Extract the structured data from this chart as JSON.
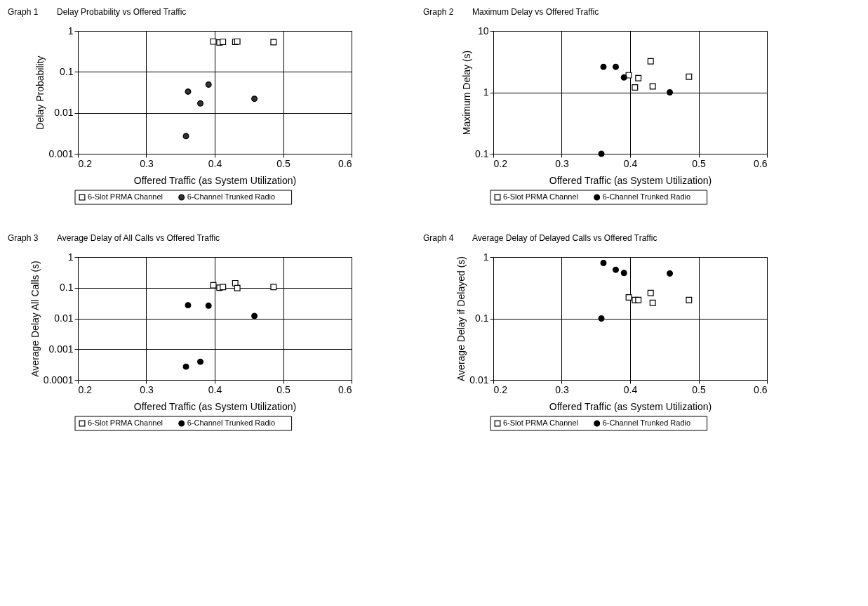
{
  "chart_data": [
    {
      "type": "scatter",
      "title": "Graph 1",
      "subtitle": "Delay Probability vs Offered Traffic",
      "xlabel": "Offered Traffic (as System Utilization)",
      "ylabel": "Delay Probability",
      "log": "y",
      "grid": true,
      "legend": "bottom",
      "xlim": [
        0.2,
        0.6
      ],
      "xticks": [
        0.2,
        0.3,
        0.4,
        0.5,
        0.6
      ],
      "ylim": [
        0.001,
        1
      ],
      "yticks": [
        0.001,
        0.01,
        0.1,
        1
      ],
      "series": [
        {
          "name": "6-Slot PRMA Channel",
          "color": "#ffffff",
          "marker": "square",
          "x": [
            0.398,
            0.407,
            0.412,
            0.43,
            0.433,
            0.486
          ],
          "values": [
            0.55,
            0.52,
            0.54,
            0.54,
            0.55,
            0.53
          ]
        },
        {
          "name": "6-Channel Trunked Radio",
          "color": "#333333",
          "marker": "circle",
          "x": [
            0.358,
            0.361,
            0.379,
            0.391,
            0.458
          ],
          "values": [
            0.0027,
            0.033,
            0.017,
            0.049,
            0.022
          ]
        }
      ]
    },
    {
      "type": "scatter",
      "title": "Graph 2",
      "subtitle": "Maximum Delay vs Offered Traffic",
      "xlabel": "Offered Traffic (as System Utilization)",
      "ylabel": "Maximum Delay (s)",
      "log": "y",
      "grid": true,
      "legend": "bottom",
      "xlim": [
        0.2,
        0.6
      ],
      "xticks": [
        0.2,
        0.3,
        0.4,
        0.5,
        0.6
      ],
      "ylim": [
        0.1,
        10
      ],
      "yticks": [
        0.1,
        1,
        10
      ],
      "series": [
        {
          "name": "6-Slot PRMA Channel",
          "color": "#ffffff",
          "marker": "square",
          "x": [
            0.398,
            0.407,
            0.412,
            0.43,
            0.433,
            0.486
          ],
          "values": [
            1.9,
            1.2,
            1.7,
            3.2,
            1.25,
            1.8
          ]
        },
        {
          "name": "6-Channel Trunked Radio",
          "color": "#000000",
          "marker": "circle",
          "x": [
            0.358,
            0.361,
            0.379,
            0.391,
            0.458
          ],
          "values": [
            0.1,
            2.6,
            2.6,
            1.75,
            1.0
          ]
        }
      ]
    },
    {
      "type": "scatter",
      "title": "Graph 3",
      "subtitle": "Average Delay of All Calls vs Offered Traffic",
      "xlabel": "Offered Traffic (as System Utilization)",
      "ylabel": "Average Delay All Calls (s)",
      "log": "y",
      "grid": true,
      "legend": "bottom",
      "xlim": [
        0.2,
        0.6
      ],
      "xticks": [
        0.2,
        0.3,
        0.4,
        0.5,
        0.6
      ],
      "ylim": [
        0.0001,
        1
      ],
      "yticks": [
        0.0001,
        0.001,
        0.01,
        0.1,
        1
      ],
      "series": [
        {
          "name": "6-Slot PRMA Channel",
          "color": "#ffffff",
          "marker": "square",
          "x": [
            0.398,
            0.407,
            0.412,
            0.43,
            0.433,
            0.486
          ],
          "values": [
            0.12,
            0.1,
            0.105,
            0.14,
            0.097,
            0.105
          ]
        },
        {
          "name": "6-Channel Trunked Radio",
          "color": "#000000",
          "marker": "circle",
          "x": [
            0.358,
            0.361,
            0.379,
            0.391,
            0.458
          ],
          "values": [
            0.00027,
            0.027,
            0.00039,
            0.026,
            0.012
          ]
        }
      ]
    },
    {
      "type": "scatter",
      "title": "Graph 4",
      "subtitle": "Average Delay of Delayed Calls vs Offered Traffic",
      "xlabel": "Offered Traffic (as System Utilization)",
      "ylabel": "Average Delay if Delayed (s)",
      "log": "y",
      "grid": true,
      "legend": "bottom",
      "xlim": [
        0.2,
        0.6
      ],
      "xticks": [
        0.2,
        0.3,
        0.4,
        0.5,
        0.6
      ],
      "ylim": [
        0.01,
        1
      ],
      "yticks": [
        0.01,
        0.1,
        1
      ],
      "series": [
        {
          "name": "6-Slot PRMA Channel",
          "color": "#ffffff",
          "marker": "square",
          "x": [
            0.398,
            0.407,
            0.412,
            0.43,
            0.433,
            0.486
          ],
          "values": [
            0.22,
            0.2,
            0.2,
            0.26,
            0.18,
            0.2
          ]
        },
        {
          "name": "6-Channel Trunked Radio",
          "color": "#000000",
          "marker": "circle",
          "x": [
            0.358,
            0.361,
            0.379,
            0.391,
            0.458
          ],
          "values": [
            0.1,
            0.8,
            0.62,
            0.55,
            0.54
          ]
        }
      ]
    }
  ]
}
